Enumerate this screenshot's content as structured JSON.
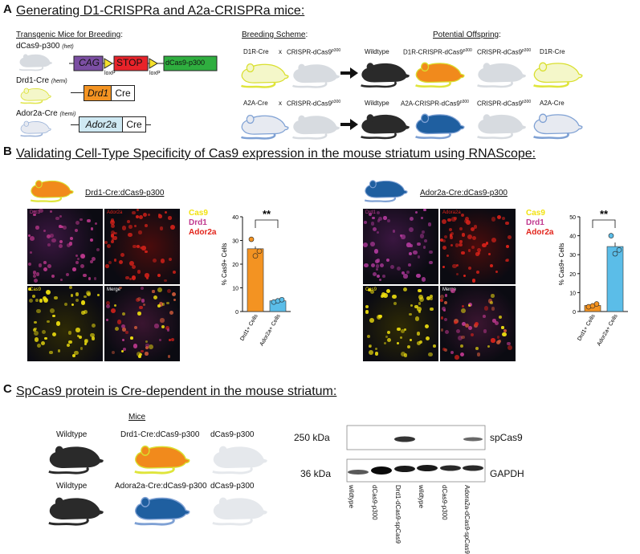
{
  "panelA": {
    "letter": "A",
    "title": "Generating D1-CRISPRa and A2a-CRISPRa mice:",
    "transgenic_heading": "Transgenic Mice for Breeding",
    "transgenic_heading_suffix": ":",
    "mouse1": {
      "name": "dCas9-p300",
      "tag": "(het)"
    },
    "mouse2": {
      "name": "Drd1-Cre",
      "tag": "(hemi)"
    },
    "mouse3": {
      "name": "Ador2a-Cre",
      "tag": "(hemi)"
    },
    "construct": {
      "promoter": "CAG",
      "stop": "STOP",
      "gene": "dCas9-p300",
      "loxp": "loxP"
    },
    "drd1_construct": {
      "gene": "Drd1",
      "cre": "Cre"
    },
    "ador2a_construct": {
      "gene": "Ador2a",
      "cre": "Cre"
    },
    "breeding_heading": "Breeding Scheme",
    "breeding_suffix": ":",
    "offspring_heading": "Potential Offspring",
    "offspring_suffix": ":",
    "row1": {
      "parent1": "D1R-Cre",
      "x": "x",
      "parent2": "CRISPR-dCas9",
      "parent2_sup": "p300",
      "off1": "Wildtype",
      "off2": "D1R-CRISPR-dCas9",
      "off2_sup": "p300",
      "off3": "CRISPR-dCas9",
      "off3_sup": "p300",
      "off4": "D1R-Cre"
    },
    "row2": {
      "parent1": "A2A-Cre",
      "x": "x",
      "parent2": "CRISPR-dCas9",
      "parent2_sup": "p300",
      "off1": "Wildtype",
      "off2": "A2A-CRISPR-dCas9",
      "off2_sup": "p300",
      "off3": "CRISPR-dCas9",
      "off3_sup": "p300",
      "off4": "A2A-Cre"
    }
  },
  "panelB": {
    "letter": "B",
    "title": "Validating Cell-Type Specificity of Cas9 expression in the mouse striatum using RNAScope:",
    "left_header": "Drd1-Cre:dCas9-p300",
    "right_header": "Ador2a-Cre:dCas9-p300",
    "micro_labels": {
      "left_tl": "Drd1",
      "left_tr": "Ador2a",
      "left_bl": "Cas9",
      "left_br": "Merge",
      "right_tl": "Drd1",
      "right_tr": "Adora2a",
      "right_bl": "Cas9",
      "right_br": "Merge"
    },
    "legend": {
      "cas9": "Cas9",
      "drd1": "Drd1",
      "ador2a": "Ador2a"
    },
    "colors": {
      "orange": "#f39322",
      "blue": "#5bbde8",
      "cas9": "#f2e20f",
      "drd1": "#c0398f",
      "ador2a": "#e2231a"
    }
  },
  "chart_data": [
    {
      "type": "bar",
      "categories": [
        "Drd1+ Cells",
        "Ador2a+ Cells"
      ],
      "values": [
        26.5,
        4.5
      ],
      "points": [
        [
          30.5,
          23.5,
          25.5
        ],
        [
          4.0,
          4.5,
          5.0
        ]
      ],
      "ylabel": "% Cas9+ Cells",
      "ylim": [
        0,
        40
      ],
      "yticks": [
        "0",
        "10",
        "20",
        "30",
        "40"
      ],
      "significance": "**"
    },
    {
      "type": "bar",
      "categories": [
        "Drd1+ Cells",
        "Ador2a+ Cells"
      ],
      "values": [
        3.2,
        34.3
      ],
      "points": [
        [
          2.5,
          3.0,
          4.0
        ],
        [
          40.0,
          30.5,
          32.5
        ]
      ],
      "ylabel": "% Cas9+ Cells",
      "ylim": [
        0,
        50
      ],
      "yticks": [
        "0",
        "10",
        "20",
        "30",
        "40",
        "50"
      ],
      "significance": "**"
    }
  ],
  "panelC": {
    "letter": "C",
    "title": "SpCas9 protein is Cre-dependent in the mouse striatum:",
    "mice_heading": "Mice",
    "row1": [
      "Wildtype",
      "Drd1-Cre:dCas9-p300",
      "dCas9-p300"
    ],
    "row2": [
      "Wildtype",
      "Adora2a-Cre:dCas9-p300",
      "dCas9-p300"
    ],
    "blot": {
      "band1_size": "250 kDa",
      "band1_name": "spCas9",
      "band2_size": "36 kDa",
      "band2_name": "GAPDH",
      "lanes": [
        "wildtype",
        "dCas9-p300",
        "Drd1-dCas9-spCas9",
        "wildtype",
        "dCas9-p300",
        "Adora2a-dCas9-spCas9"
      ]
    }
  }
}
